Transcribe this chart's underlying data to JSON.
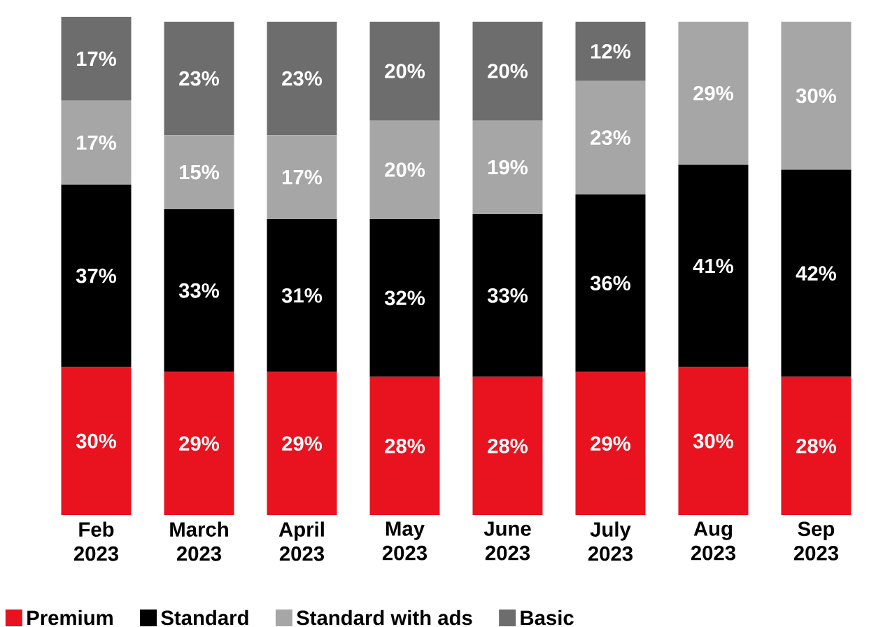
{
  "chart_data": {
    "type": "bar",
    "stacked": true,
    "legend": "bottom",
    "categories": [
      "Feb 2023",
      "March 2023",
      "April 2023",
      "May 2023",
      "June 2023",
      "July 2023",
      "Aug 2023",
      "Sep 2023"
    ],
    "series": [
      {
        "name": "Premium",
        "color": "#e8131f",
        "values": [
          30,
          29,
          29,
          28,
          28,
          29,
          30,
          28
        ],
        "value_labels": [
          "30%",
          "29%",
          "29%",
          "28%",
          "28%",
          "29%",
          "30%",
          "28%"
        ]
      },
      {
        "name": "Standard",
        "color": "#000000",
        "values": [
          37,
          33,
          31,
          32,
          33,
          36,
          41,
          42
        ],
        "value_labels": [
          "37%",
          "33%",
          "31%",
          "32%",
          "33%",
          "36%",
          "41%",
          "42%"
        ]
      },
      {
        "name": "Standard with ads",
        "color": "#a6a6a6",
        "values": [
          17,
          15,
          17,
          20,
          19,
          23,
          29,
          30
        ],
        "value_labels": [
          "17%",
          "15%",
          "17%",
          "20%",
          "19%",
          "23%",
          "29%",
          "30%"
        ]
      },
      {
        "name": "Basic",
        "color": "#6d6d6d",
        "values": [
          17,
          23,
          23,
          20,
          20,
          12,
          null,
          null
        ],
        "value_labels": [
          "17%",
          "23%",
          "23%",
          "20%",
          "20%",
          "12%",
          null,
          null
        ]
      }
    ]
  }
}
